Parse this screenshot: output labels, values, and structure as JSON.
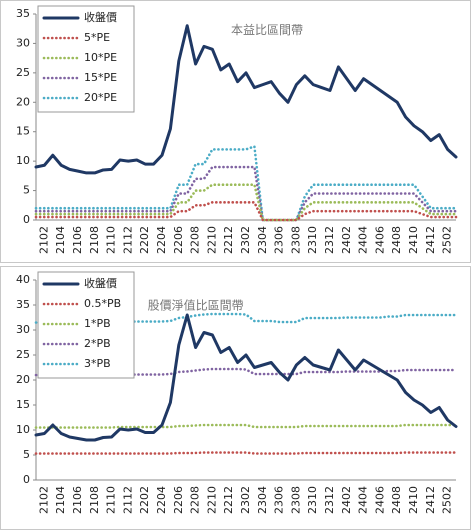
{
  "chart_data": [
    {
      "type": "line",
      "annotation": "本益比區間帶",
      "categories": [
        null,
        "2102",
        null,
        "2104",
        null,
        "2106",
        null,
        "2108",
        null,
        "2110",
        null,
        "2112",
        null,
        "2202",
        null,
        "2204",
        null,
        "2206",
        null,
        "2208",
        null,
        "2210",
        null,
        "2212",
        null,
        "2302",
        null,
        "2304",
        null,
        "2306",
        null,
        "2308",
        null,
        "2310",
        null,
        "2312",
        null,
        "2402",
        null,
        "2404",
        null,
        "2406",
        null,
        "2408",
        null,
        "2410",
        null,
        "2412",
        null,
        "2502",
        null
      ],
      "ylim": [
        0,
        35
      ],
      "yticks": [
        0,
        5,
        10,
        15,
        20,
        25,
        30,
        35
      ],
      "legend": "upper-left",
      "series": [
        {
          "name": "收盤價",
          "color": "#1f3864",
          "line_style": "solid",
          "values": [
            9,
            9.3,
            11,
            9.3,
            8.6,
            8.3,
            8,
            8,
            8.5,
            8.6,
            10.2,
            10,
            10.2,
            9.5,
            9.5,
            11,
            15.5,
            27,
            33,
            26.5,
            29.5,
            29,
            25.5,
            26.5,
            23.5,
            25,
            22.5,
            23,
            23.5,
            21.5,
            20,
            23,
            24.5,
            23,
            22.5,
            22,
            26,
            24,
            22,
            24,
            23,
            22,
            21,
            20,
            17.5,
            16,
            15,
            13.5,
            14.5,
            12,
            10.7
          ]
        },
        {
          "name": "5*PE",
          "color": "#c0504d",
          "line_style": "dotted",
          "values": [
            0.5,
            0.5,
            0.5,
            0.5,
            0.5,
            0.5,
            0.5,
            0.5,
            0.5,
            0.5,
            0.5,
            0.5,
            0.5,
            0.5,
            0.5,
            0.5,
            0.5,
            1.5,
            1.5,
            2.5,
            2.5,
            3,
            3,
            3,
            3,
            3,
            3,
            0,
            0,
            0,
            0,
            0,
            1,
            1.5,
            1.5,
            1.5,
            1.5,
            1.5,
            1.5,
            1.5,
            1.5,
            1.5,
            1.5,
            1.5,
            1.5,
            1.5,
            1,
            0.5,
            0.5,
            0.5,
            0.5
          ]
        },
        {
          "name": "10*PE",
          "color": "#9bbb59",
          "line_style": "dotted",
          "values": [
            1,
            1,
            1,
            1,
            1,
            1,
            1,
            1,
            1,
            1,
            1,
            1,
            1,
            1,
            1,
            1,
            1,
            3,
            3,
            5,
            5,
            6,
            6,
            6,
            6,
            6,
            6,
            0,
            0,
            0,
            0,
            0,
            2,
            3,
            3,
            3,
            3,
            3,
            3,
            3,
            3,
            3,
            3,
            3,
            3,
            3,
            2,
            1,
            1,
            1,
            1
          ]
        },
        {
          "name": "15*PE",
          "color": "#8064a2",
          "line_style": "dotted",
          "values": [
            1.5,
            1.5,
            1.5,
            1.5,
            1.5,
            1.5,
            1.5,
            1.5,
            1.5,
            1.5,
            1.5,
            1.5,
            1.5,
            1.5,
            1.5,
            1.5,
            1.5,
            4.5,
            4.5,
            7,
            7,
            9,
            9,
            9,
            9,
            9,
            9,
            0,
            0,
            0,
            0,
            0,
            3,
            4.5,
            4.5,
            4.5,
            4.5,
            4.5,
            4.5,
            4.5,
            4.5,
            4.5,
            4.5,
            4.5,
            4.5,
            4.5,
            3,
            1.5,
            1.5,
            1.5,
            1.5
          ]
        },
        {
          "name": "20*PE",
          "color": "#4bacc6",
          "line_style": "dotted",
          "values": [
            2,
            2,
            2,
            2,
            2,
            2,
            2,
            2,
            2,
            2,
            2,
            2,
            2,
            2,
            2,
            2,
            2,
            6,
            6,
            9.5,
            9.5,
            12,
            12,
            12,
            12,
            12,
            12.5,
            0,
            0,
            0,
            0,
            0,
            4,
            6,
            6,
            6,
            6,
            6,
            6,
            6,
            6,
            6,
            6,
            6,
            6,
            6,
            4,
            2,
            2,
            2,
            2
          ]
        }
      ]
    },
    {
      "type": "line",
      "annotation": "股價淨值比區間帶",
      "categories": [
        null,
        "2102",
        null,
        "2104",
        null,
        "2106",
        null,
        "2108",
        null,
        "2110",
        null,
        "2112",
        null,
        "2202",
        null,
        "2204",
        null,
        "2206",
        null,
        "2208",
        null,
        "2210",
        null,
        "2212",
        null,
        "2302",
        null,
        "2304",
        null,
        "2306",
        null,
        "2308",
        null,
        "2310",
        null,
        "2312",
        null,
        "2402",
        null,
        "2404",
        null,
        "2406",
        null,
        "2408",
        null,
        "2410",
        null,
        "2412",
        null,
        "2502",
        null
      ],
      "ylim": [
        0,
        40
      ],
      "yticks": [
        0,
        5,
        10,
        15,
        20,
        25,
        30,
        35,
        40
      ],
      "legend": "upper-left",
      "series": [
        {
          "name": "收盤價",
          "color": "#1f3864",
          "line_style": "solid",
          "values": [
            9,
            9.3,
            11,
            9.3,
            8.6,
            8.3,
            8,
            8,
            8.5,
            8.6,
            10.2,
            10,
            10.2,
            9.5,
            9.5,
            11,
            15.5,
            27,
            33,
            26.5,
            29.5,
            29,
            25.5,
            26.5,
            23.5,
            25,
            22.5,
            23,
            23.5,
            21.5,
            20,
            23,
            24.5,
            23,
            22.5,
            22,
            26,
            24,
            22,
            24,
            23,
            22,
            21,
            20,
            17.5,
            16,
            15,
            13.5,
            14.5,
            12,
            10.7
          ]
        },
        {
          "name": "0.5*PB",
          "color": "#c0504d",
          "line_style": "dotted",
          "values": [
            5.3,
            5.3,
            5.3,
            5.3,
            5.3,
            5.3,
            5.3,
            5.3,
            5.3,
            5.3,
            5.3,
            5.3,
            5.3,
            5.3,
            5.3,
            5.3,
            5.3,
            5.4,
            5.4,
            5.4,
            5.5,
            5.5,
            5.5,
            5.5,
            5.5,
            5.5,
            5.3,
            5.3,
            5.3,
            5.3,
            5.3,
            5.3,
            5.4,
            5.4,
            5.4,
            5.4,
            5.4,
            5.4,
            5.4,
            5.4,
            5.4,
            5.4,
            5.4,
            5.4,
            5.5,
            5.5,
            5.5,
            5.5,
            5.5,
            5.5,
            5.5
          ]
        },
        {
          "name": "1*PB",
          "color": "#9bbb59",
          "line_style": "dotted",
          "values": [
            10.5,
            10.5,
            10.5,
            10.5,
            10.5,
            10.5,
            10.5,
            10.5,
            10.5,
            10.5,
            10.6,
            10.6,
            10.6,
            10.6,
            10.6,
            10.6,
            10.6,
            10.8,
            10.8,
            10.9,
            11,
            11,
            11,
            11,
            11,
            11,
            10.6,
            10.6,
            10.6,
            10.6,
            10.6,
            10.6,
            10.8,
            10.8,
            10.8,
            10.8,
            10.8,
            10.8,
            10.8,
            10.8,
            10.8,
            10.8,
            10.8,
            10.8,
            11,
            11,
            11,
            11,
            11,
            11,
            11
          ]
        },
        {
          "name": "2*PB",
          "color": "#8064a2",
          "line_style": "dotted",
          "values": [
            21,
            21,
            21,
            21,
            21,
            21,
            21,
            21,
            21,
            21,
            21.1,
            21.1,
            21.1,
            21.1,
            21.1,
            21.1,
            21.2,
            21.6,
            21.7,
            21.9,
            22.1,
            22.2,
            22.2,
            22.2,
            22.2,
            22.1,
            21.2,
            21.2,
            21.2,
            21.2,
            21.2,
            21.2,
            21.6,
            21.6,
            21.6,
            21.6,
            21.6,
            21.7,
            21.7,
            21.7,
            21.7,
            21.7,
            21.8,
            21.8,
            22,
            22,
            22,
            22,
            22,
            22,
            22
          ]
        },
        {
          "name": "3*PB",
          "color": "#4bacc6",
          "line_style": "dotted",
          "values": [
            31.5,
            31.5,
            31.5,
            31.5,
            31.5,
            31.5,
            31.5,
            31.5,
            31.5,
            31.5,
            31.7,
            31.7,
            31.7,
            31.7,
            31.7,
            31.7,
            31.8,
            32.4,
            32.6,
            32.9,
            33.1,
            33.2,
            33.2,
            33.2,
            33.2,
            33.1,
            31.8,
            31.8,
            31.8,
            31.6,
            31.6,
            31.6,
            32.4,
            32.4,
            32.4,
            32.4,
            32.4,
            32.5,
            32.5,
            32.5,
            32.5,
            32.5,
            32.7,
            32.7,
            33,
            33,
            33,
            33,
            33,
            33,
            33
          ]
        }
      ]
    }
  ]
}
